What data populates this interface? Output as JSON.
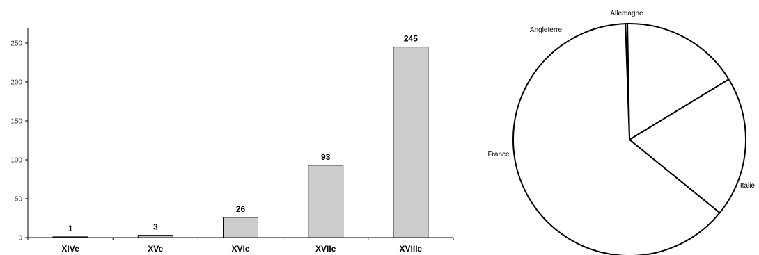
{
  "chart_data": [
    {
      "type": "bar",
      "categories": [
        "XIVe",
        "XVe",
        "XVIe",
        "XVIIe",
        "XVIIIe"
      ],
      "values": [
        1,
        3,
        26,
        93,
        245
      ],
      "data_labels": [
        "1",
        "3",
        "26",
        "93",
        "245"
      ],
      "ylim": [
        0,
        265
      ],
      "yticks": [
        0,
        50,
        100,
        150,
        200,
        250
      ],
      "grid": false,
      "bar_color": "#cccccc",
      "edge_color": "#000000"
    },
    {
      "type": "pie",
      "labels": [
        "Allemagne",
        "Angleterre",
        "France",
        "Italie"
      ],
      "values": [
        1,
        61,
        72,
        234
      ],
      "fill_color": "#ffffff",
      "edge_color": "#000000"
    }
  ]
}
